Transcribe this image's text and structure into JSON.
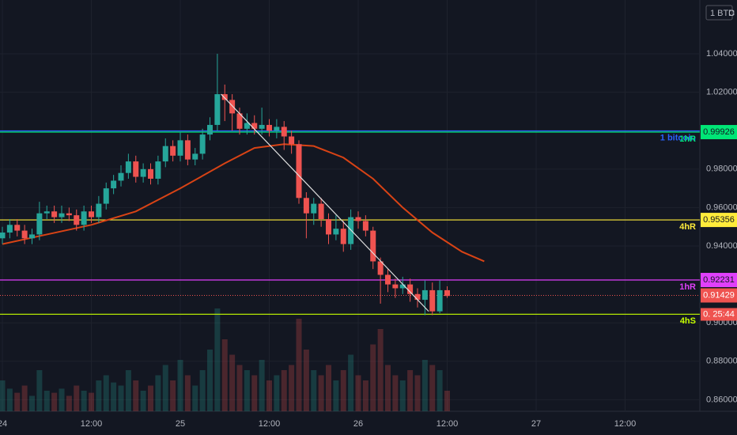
{
  "chart_data": {
    "type": "candlestick",
    "currency_label": "1 BTC",
    "mode_label": "D",
    "x": [
      0,
      1,
      2,
      3,
      4,
      5,
      6,
      7,
      8,
      9,
      10,
      11,
      12,
      13,
      14,
      15,
      16,
      17,
      18,
      19,
      20,
      21,
      22,
      23,
      24,
      25,
      26,
      27,
      28,
      29,
      30,
      31,
      32,
      33,
      34,
      35,
      36,
      37,
      38,
      39,
      40,
      41,
      42,
      43,
      44,
      45,
      46,
      47,
      48,
      49,
      50,
      51,
      52,
      53,
      54,
      55,
      56,
      57,
      58,
      59,
      60
    ],
    "open": [
      0.944,
      0.947,
      0.951,
      0.948,
      0.944,
      0.946,
      0.957,
      0.958,
      0.955,
      0.957,
      0.956,
      0.951,
      0.958,
      0.955,
      0.962,
      0.97,
      0.974,
      0.978,
      0.984,
      0.976,
      0.98,
      0.975,
      0.984,
      0.992,
      0.987,
      0.995,
      0.985,
      0.988,
      0.998,
      1.003,
      1.019,
      1.016,
      1.009,
      1.001,
      1.004,
      1.001,
      1.003,
      1.0,
      1.002,
      0.997,
      0.993,
      0.965,
      0.957,
      0.962,
      0.954,
      0.946,
      0.949,
      0.941,
      0.955,
      0.953,
      0.948,
      0.932,
      0.925,
      0.92,
      0.918,
      0.92,
      0.915,
      0.912,
      0.917,
      0.906,
      0.917
    ],
    "high": [
      0.95,
      0.954,
      0.954,
      0.951,
      0.949,
      0.963,
      0.961,
      0.961,
      0.961,
      0.96,
      0.959,
      0.961,
      0.961,
      0.966,
      0.973,
      0.977,
      0.982,
      0.988,
      0.987,
      0.983,
      0.983,
      0.987,
      0.996,
      0.995,
      0.999,
      0.998,
      0.991,
      1.001,
      1.007,
      1.04,
      1.024,
      1.019,
      1.012,
      1.009,
      1.008,
      1.012,
      1.006,
      1.006,
      1.005,
      1.0,
      0.995,
      0.968,
      0.965,
      0.965,
      0.957,
      0.956,
      0.953,
      0.959,
      0.958,
      0.956,
      0.95,
      0.934,
      0.928,
      0.923,
      0.924,
      0.923,
      0.918,
      0.922,
      0.921,
      0.922,
      0.919
    ],
    "low": [
      0.941,
      0.944,
      0.945,
      0.941,
      0.941,
      0.943,
      0.954,
      0.952,
      0.952,
      0.953,
      0.948,
      0.948,
      0.952,
      0.952,
      0.959,
      0.967,
      0.971,
      0.975,
      0.973,
      0.973,
      0.972,
      0.972,
      0.981,
      0.984,
      0.984,
      0.982,
      0.982,
      0.985,
      0.995,
      1.0,
      1.005,
      1.0,
      0.998,
      0.998,
      0.998,
      0.998,
      0.997,
      0.996,
      0.99,
      0.988,
      0.962,
      0.944,
      0.951,
      0.95,
      0.941,
      0.943,
      0.937,
      0.938,
      0.949,
      0.945,
      0.928,
      0.91,
      0.916,
      0.913,
      0.915,
      0.911,
      0.908,
      0.904,
      0.904,
      0.905,
      0.913
    ],
    "close": [
      0.947,
      0.951,
      0.948,
      0.944,
      0.946,
      0.957,
      0.958,
      0.955,
      0.957,
      0.956,
      0.951,
      0.958,
      0.955,
      0.962,
      0.97,
      0.974,
      0.978,
      0.984,
      0.976,
      0.98,
      0.975,
      0.984,
      0.992,
      0.987,
      0.995,
      0.985,
      0.988,
      0.998,
      1.003,
      1.019,
      1.016,
      1.009,
      1.001,
      1.004,
      1.001,
      1.003,
      1.0,
      1.002,
      0.997,
      0.993,
      0.965,
      0.957,
      0.962,
      0.954,
      0.946,
      0.949,
      0.941,
      0.955,
      0.953,
      0.948,
      0.932,
      0.925,
      0.92,
      0.918,
      0.92,
      0.915,
      0.912,
      0.917,
      0.906,
      0.917,
      0.914
    ],
    "volume": [
      30,
      22,
      18,
      25,
      15,
      40,
      20,
      18,
      22,
      15,
      25,
      20,
      18,
      30,
      35,
      28,
      25,
      40,
      30,
      20,
      25,
      35,
      45,
      30,
      50,
      35,
      25,
      40,
      60,
      100,
      70,
      55,
      45,
      40,
      35,
      50,
      30,
      35,
      40,
      45,
      90,
      60,
      40,
      35,
      45,
      30,
      40,
      55,
      35,
      30,
      65,
      80,
      45,
      35,
      30,
      40,
      35,
      50,
      45,
      40,
      20
    ],
    "volume_ylim": [
      0,
      100
    ],
    "up_color": "#26a69a",
    "down_color": "#ef5350",
    "ma": {
      "color": "#d84315",
      "x": [
        0,
        6,
        12,
        18,
        24,
        30,
        34,
        38,
        42,
        46,
        50,
        54,
        58,
        62,
        65
      ],
      "values": [
        0.941,
        0.946,
        0.951,
        0.958,
        0.97,
        0.983,
        0.991,
        0.993,
        0.992,
        0.986,
        0.975,
        0.96,
        0.947,
        0.937,
        0.932
      ]
    },
    "trend_line": {
      "color": "#e0e0e0",
      "x": [
        29.5,
        57.5
      ],
      "values": [
        1.019,
        0.906
      ]
    },
    "levels": [
      {
        "value": 0.9999,
        "color": "#2962ff",
        "text": "1 bitcoin"
      },
      {
        "value": 0.99926,
        "color": "#00e676",
        "text": "1hR",
        "box": true
      },
      {
        "value": 0.95356,
        "color": "#ffeb3b",
        "text": "4hR",
        "box": true
      },
      {
        "value": 0.92231,
        "color": "#e040fb",
        "text": "1hR",
        "box": true
      },
      {
        "value": 0.9045,
        "color": "#c6ff00",
        "text": "4hS"
      }
    ],
    "current_price": 0.91429,
    "countdown": "0. 25:44",
    "xlim": [
      -0.32,
      94.08
    ],
    "ylim": [
      0.854,
      1.068
    ],
    "xticks": [
      {
        "value": 0,
        "label": "24"
      },
      {
        "value": 12,
        "label": "12:00"
      },
      {
        "value": 24,
        "label": "25"
      },
      {
        "value": 36,
        "label": "12:00"
      },
      {
        "value": 48,
        "label": "26"
      },
      {
        "value": 60,
        "label": "12:00"
      },
      {
        "value": 72,
        "label": "27"
      },
      {
        "value": 84,
        "label": "12:00"
      }
    ],
    "yticks": [
      {
        "value": 0.86,
        "label": "0.86000"
      },
      {
        "value": 0.88,
        "label": "0.88000"
      },
      {
        "value": 0.9,
        "label": "0.90000"
      },
      {
        "value": 0.94,
        "label": "0.94000"
      },
      {
        "value": 0.96,
        "label": "0.96000"
      },
      {
        "value": 0.98,
        "label": "0.98000"
      },
      {
        "value": 1.02,
        "label": "1.02000"
      },
      {
        "value": 1.04,
        "label": "1.04000"
      }
    ],
    "grid": true
  }
}
